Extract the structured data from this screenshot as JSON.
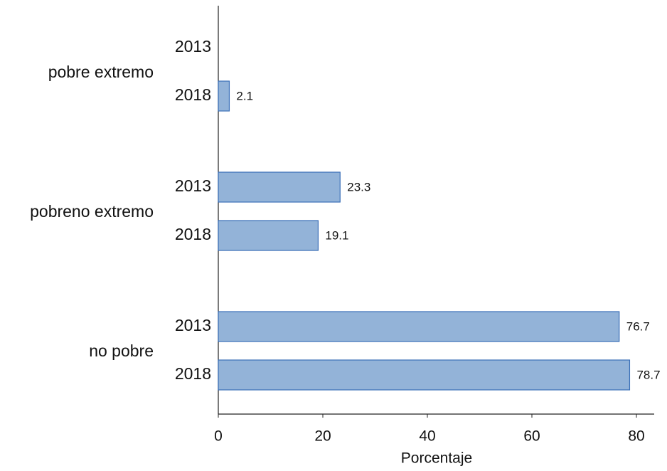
{
  "chart_data": {
    "type": "bar",
    "orientation": "horizontal",
    "categories": [
      "pobre extremo",
      "pobreno extremo",
      "no pobre"
    ],
    "series": [
      {
        "name": "2013",
        "values": [
          null,
          23.3,
          76.7
        ]
      },
      {
        "name": "2018",
        "values": [
          2.1,
          19.1,
          78.7
        ]
      }
    ],
    "color": "#93b3d8",
    "edge_color": "#3a6fb8",
    "x_label": "Porcentaje",
    "xlim": [
      0,
      83.4
    ],
    "xticks": [
      0,
      20,
      40,
      60,
      80
    ],
    "grid": false
  }
}
